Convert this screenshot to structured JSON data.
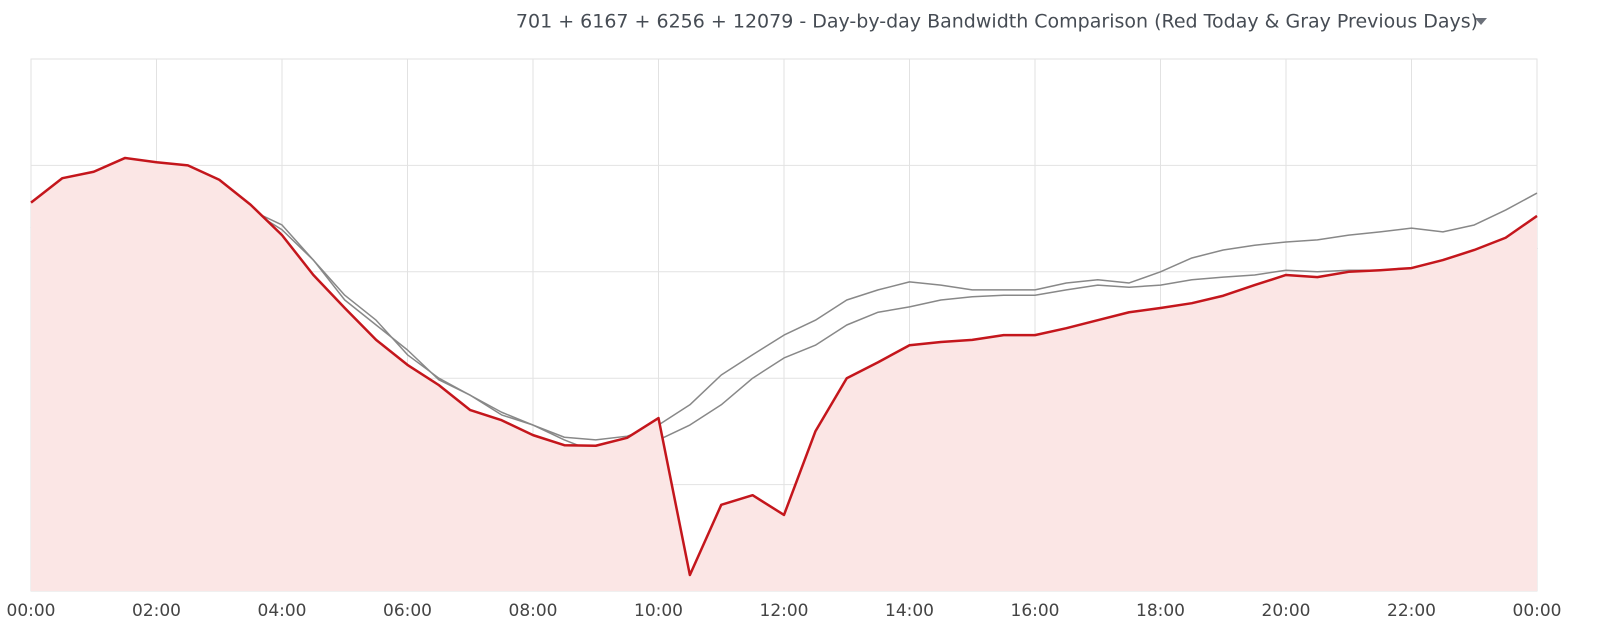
{
  "chart_data": {
    "type": "line",
    "title": "701 + 6167 + 6256 + 12079 - Day-by-day Bandwidth Comparison (Red Today & Gray Previous Days)",
    "x": [
      0,
      0.5,
      1,
      1.5,
      2,
      2.5,
      3,
      3.5,
      4,
      4.5,
      5,
      5.5,
      6,
      6.5,
      7,
      7.5,
      8,
      8.5,
      9,
      9.5,
      10,
      10.5,
      11,
      11.5,
      12,
      12.5,
      13,
      13.5,
      14,
      14.5,
      15,
      15.5,
      16,
      16.5,
      17,
      17.5,
      18,
      18.5,
      19,
      19.5,
      20,
      20.5,
      21,
      21.5,
      22,
      22.5,
      23,
      23.5,
      24
    ],
    "xlim": [
      0,
      24
    ],
    "xticks": [
      {
        "value": 0,
        "label": "00:00"
      },
      {
        "value": 2,
        "label": "02:00"
      },
      {
        "value": 4,
        "label": "04:00"
      },
      {
        "value": 6,
        "label": "06:00"
      },
      {
        "value": 8,
        "label": "08:00"
      },
      {
        "value": 10,
        "label": "10:00"
      },
      {
        "value": 12,
        "label": "12:00"
      },
      {
        "value": 14,
        "label": "14:00"
      },
      {
        "value": 16,
        "label": "16:00"
      },
      {
        "value": 18,
        "label": "18:00"
      },
      {
        "value": 20,
        "label": "20:00"
      },
      {
        "value": 22,
        "label": "22:00"
      },
      {
        "value": 24,
        "label": "00:00"
      }
    ],
    "ylim": [
      0,
      100
    ],
    "yticks": [
      0,
      20,
      40,
      60,
      80,
      100
    ],
    "grid": true,
    "series": [
      {
        "color": "#888888",
        "values": [
          68.2,
          69.4,
          72.6,
          74.4,
          76.7,
          76.7,
          74.4,
          71.6,
          67.9,
          62.2,
          54.7,
          50,
          45.3,
          39.7,
          36.8,
          33.6,
          31.2,
          28.9,
          28.4,
          29.1,
          31.2,
          35,
          40.6,
          44.4,
          48.1,
          50.9,
          54.7,
          56.6,
          58.1,
          57.5,
          56.6,
          56.6,
          56.6,
          57.9,
          58.5,
          57.9,
          60,
          62.6,
          64.1,
          65,
          65.6,
          66,
          66.9,
          67.5,
          68.2,
          67.5,
          68.8,
          71.6,
          74.8
        ]
      },
      {
        "color": "#888888",
        "values": [
          65.6,
          66,
          69.7,
          74.4,
          75.4,
          75.9,
          73.5,
          71.6,
          68.8,
          62.2,
          55.6,
          50.9,
          44.4,
          40,
          36.8,
          33.1,
          31.2,
          28.4,
          26.1,
          26.1,
          28.4,
          31.2,
          35,
          40,
          43.8,
          46.2,
          50,
          52.4,
          53.4,
          54.7,
          55.3,
          55.6,
          55.6,
          56.6,
          57.5,
          57.1,
          57.5,
          58.5,
          59,
          59.4,
          60.3,
          60,
          60.3,
          60.3,
          60,
          60.3,
          61.3,
          61.8,
          64.5
        ]
      },
      {
        "color": "#c4161c",
        "fill": "#fbe6e5",
        "values": [
          73,
          77.6,
          78.8,
          81.4,
          80.6,
          80,
          77.3,
          72.6,
          66.9,
          59.4,
          53.2,
          47.2,
          42.5,
          38.7,
          34,
          32.1,
          29.3,
          27.4,
          27.3,
          28.8,
          32.5,
          3,
          16.2,
          18,
          14.3,
          30,
          40,
          43,
          46.2,
          46.8,
          47.2,
          48.1,
          48.1,
          49.4,
          50.9,
          52.4,
          53.2,
          54.1,
          55.5,
          57.5,
          59.4,
          59,
          60,
          60.3,
          60.7,
          62.2,
          64.1,
          66.4,
          70.5
        ]
      }
    ]
  }
}
